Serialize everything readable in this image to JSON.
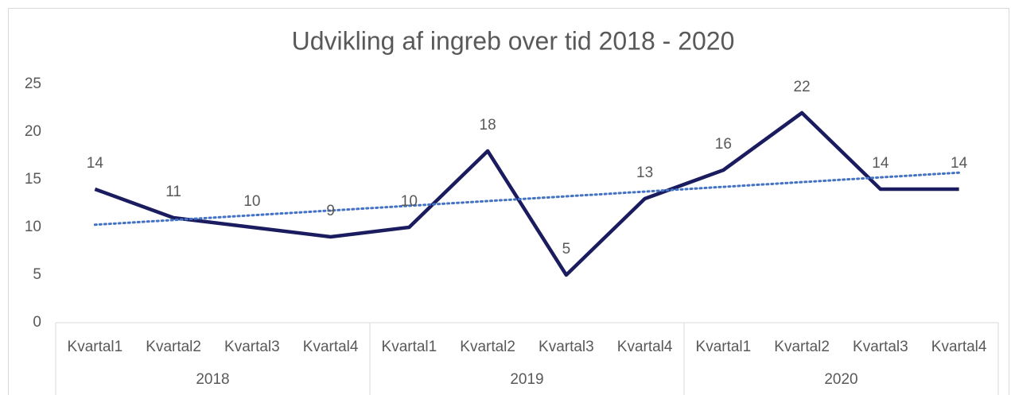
{
  "chart_data": {
    "type": "line",
    "title": "Udvikling af ingreb over tid 2018 - 2020",
    "categories": [
      "Kvartal1",
      "Kvartal2",
      "Kvartal3",
      "Kvartal4",
      "Kvartal1",
      "Kvartal2",
      "Kvartal3",
      "Kvartal4",
      "Kvartal1",
      "Kvartal2",
      "Kvartal3",
      "Kvartal4"
    ],
    "category_groups": [
      "2018",
      "2019",
      "2020"
    ],
    "values": [
      14,
      11,
      10,
      9,
      10,
      18,
      5,
      13,
      16,
      22,
      14,
      14
    ],
    "color": "#1b1c5f",
    "trendline": {
      "type": "linear",
      "color": "#4472c4"
    },
    "data_labels": true,
    "ylim": [
      0,
      25
    ],
    "yticks": [
      0,
      5,
      10,
      15,
      20,
      25
    ],
    "grid": false
  }
}
